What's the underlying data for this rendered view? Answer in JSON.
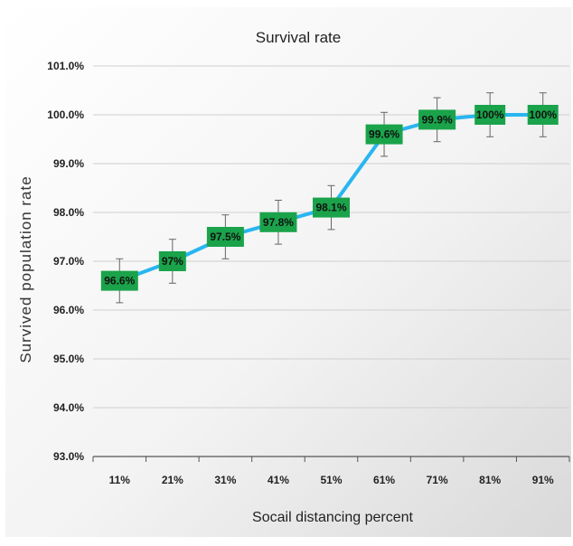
{
  "chart_data": {
    "type": "line",
    "title": "Survival rate",
    "xlabel": "Socail distancing percent",
    "ylabel": "Survived population rate",
    "categories": [
      "11%",
      "21%",
      "31%",
      "41%",
      "51%",
      "61%",
      "71%",
      "81%",
      "91%"
    ],
    "series": [
      {
        "values": [
          96.6,
          97.0,
          97.5,
          97.8,
          98.1,
          99.6,
          99.9,
          100.0,
          100.0
        ],
        "labels": [
          "96.6%",
          "97%",
          "97.5%",
          "97.8%",
          "98.1%",
          "99.6%",
          "99.9%",
          "100%",
          "100%"
        ],
        "error": 0.45
      }
    ],
    "yticks": [
      "93.0%",
      "94.0%",
      "95.0%",
      "96.0%",
      "97.0%",
      "98.0%",
      "99.0%",
      "100.0%",
      "101.0%"
    ],
    "ylim": [
      93,
      101
    ],
    "grid": true,
    "line_color": "#29b6f0",
    "label_box_color": "#1aa34a"
  }
}
